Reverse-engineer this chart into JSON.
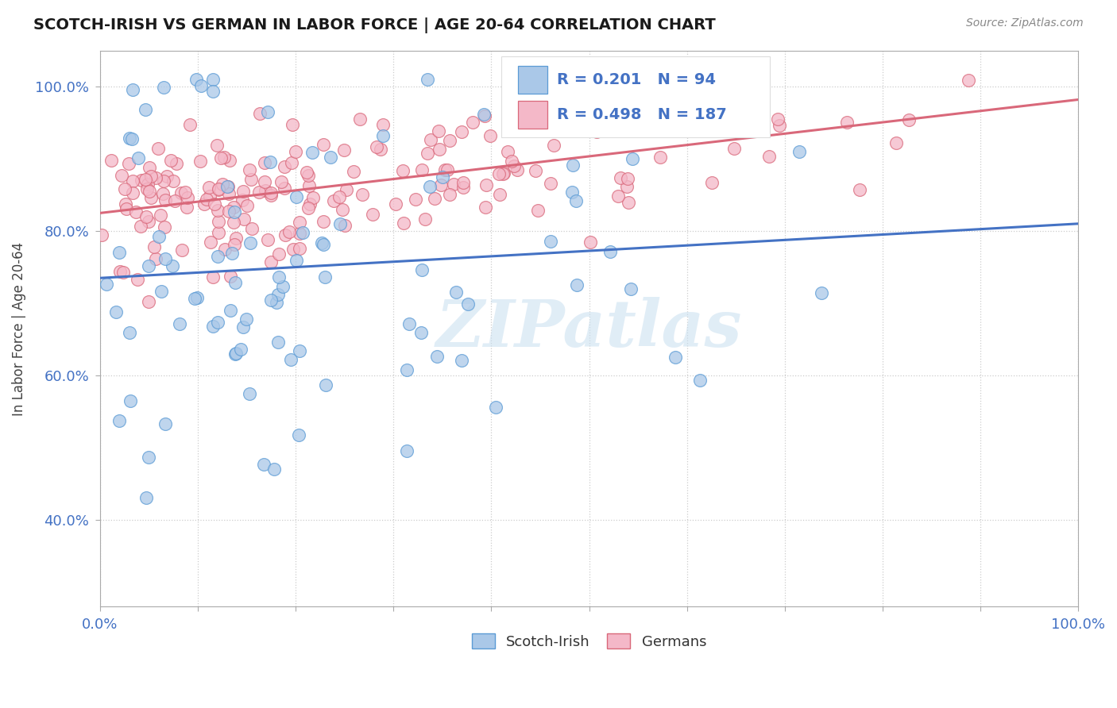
{
  "title": "SCOTCH-IRISH VS GERMAN IN LABOR FORCE | AGE 20-64 CORRELATION CHART",
  "source_text": "Source: ZipAtlas.com",
  "ylabel": "In Labor Force | Age 20-64",
  "xlim": [
    0.0,
    1.0
  ],
  "ylim": [
    0.28,
    1.05
  ],
  "x_ticks": [
    0.0,
    0.1,
    0.2,
    0.3,
    0.4,
    0.5,
    0.6,
    0.7,
    0.8,
    0.9,
    1.0
  ],
  "x_tick_labels": [
    "0.0%",
    "",
    "",
    "",
    "",
    "",
    "",
    "",
    "",
    "",
    "100.0%"
  ],
  "y_ticks": [
    0.4,
    0.6,
    0.8,
    1.0
  ],
  "y_tick_labels": [
    "40.0%",
    "60.0%",
    "80.0%",
    "100.0%"
  ],
  "scotch_irish_color": "#aac8e8",
  "scotch_irish_edge": "#5b9bd5",
  "german_color": "#f4b8c8",
  "german_edge": "#d9687a",
  "scotch_irish_line_color": "#4472c4",
  "german_line_color": "#d9687a",
  "legend_color": "#4472c4",
  "R_scotch": 0.201,
  "N_scotch": 94,
  "R_german": 0.498,
  "N_german": 187,
  "watermark": "ZIPatlas",
  "watermark_color": "#c8dff0"
}
